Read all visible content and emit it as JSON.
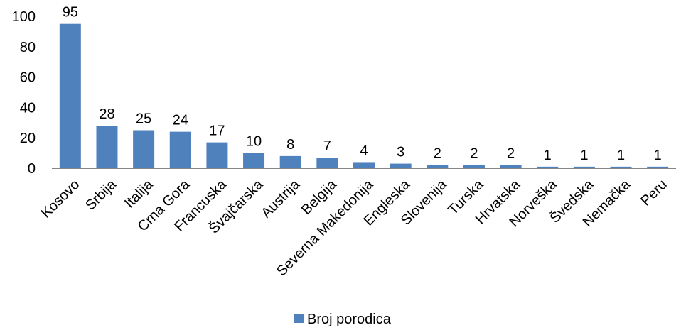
{
  "chart_data": {
    "type": "bar",
    "categories": [
      "Kosovo",
      "Srbija",
      "Italija",
      "Crna Gora",
      "Francuska",
      "Švajčarska",
      "Austrija",
      "Belgija",
      "Severna Makedonija",
      "Engleska",
      "Slovenija",
      "Turska",
      "Hrvatska",
      "Norveška",
      "Švedska",
      "Nemačka",
      "Peru"
    ],
    "series": [
      {
        "name": "Broj porodica",
        "values": [
          95,
          28,
          25,
          24,
          17,
          10,
          8,
          7,
          4,
          3,
          2,
          2,
          2,
          1,
          1,
          1,
          1
        ],
        "color": "#4F81BD"
      }
    ],
    "yticks": [
      0,
      20,
      40,
      60,
      80,
      100
    ],
    "ylim": [
      0,
      100
    ],
    "grid": false,
    "data_labels": true,
    "legend_position": "bottom"
  }
}
